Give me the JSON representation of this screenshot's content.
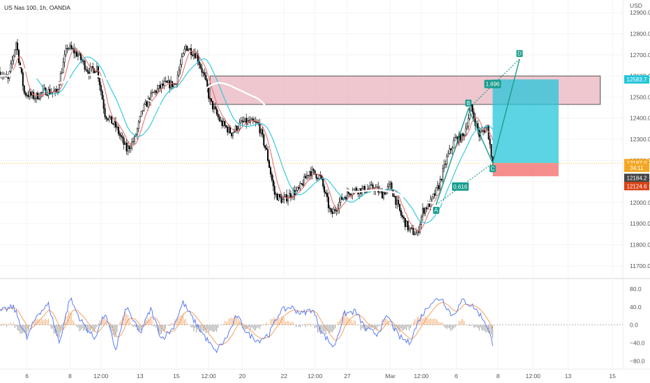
{
  "header": {
    "symbol": "US Nas 100, 1h, OANDA",
    "currency": "USD"
  },
  "chart_data": {
    "type": "candlestick",
    "price_axis": {
      "ylim": [
        11640,
        12960
      ],
      "ticks": [
        11700.0,
        11800.0,
        11900.0,
        12000.0,
        12100.0,
        12200.0,
        12300.0,
        12400.0,
        12500.0,
        12600.0,
        12700.0,
        12800.0,
        12900.0
      ]
    },
    "x_axis": {
      "ticks": [
        {
          "label": "6",
          "i": 20
        },
        {
          "label": "8",
          "i": 52
        },
        {
          "label": "12:00",
          "i": 75
        },
        {
          "label": "13",
          "i": 104
        },
        {
          "label": "15",
          "i": 131
        },
        {
          "label": "12:00",
          "i": 155
        },
        {
          "label": "20",
          "i": 180
        },
        {
          "label": "22",
          "i": 211
        },
        {
          "label": "12:00",
          "i": 234
        },
        {
          "label": "27",
          "i": 258
        },
        {
          "label": "Mar",
          "i": 290
        },
        {
          "label": "12:00",
          "i": 313
        },
        {
          "label": "6",
          "i": 339
        },
        {
          "label": "8",
          "i": 370
        },
        {
          "label": "12:00",
          "i": 396
        },
        {
          "label": "13",
          "i": 422
        },
        {
          "label": "15",
          "i": 455
        }
      ]
    },
    "price_path": [
      [
        0,
        12620
      ],
      [
        6,
        12580
      ],
      [
        12,
        12760
      ],
      [
        18,
        12520
      ],
      [
        26,
        12500
      ],
      [
        34,
        12530
      ],
      [
        42,
        12520
      ],
      [
        50,
        12740
      ],
      [
        58,
        12700
      ],
      [
        66,
        12620
      ],
      [
        72,
        12640
      ],
      [
        78,
        12420
      ],
      [
        86,
        12360
      ],
      [
        94,
        12250
      ],
      [
        100,
        12300
      ],
      [
        106,
        12440
      ],
      [
        114,
        12520
      ],
      [
        122,
        12560
      ],
      [
        130,
        12560
      ],
      [
        138,
        12740
      ],
      [
        146,
        12700
      ],
      [
        152,
        12590
      ],
      [
        156,
        12480
      ],
      [
        164,
        12380
      ],
      [
        172,
        12330
      ],
      [
        180,
        12380
      ],
      [
        186,
        12380
      ],
      [
        192,
        12370
      ],
      [
        198,
        12240
      ],
      [
        204,
        12040
      ],
      [
        210,
        12010
      ],
      [
        216,
        12040
      ],
      [
        222,
        12060
      ],
      [
        230,
        12150
      ],
      [
        238,
        12120
      ],
      [
        246,
        11940
      ],
      [
        254,
        12020
      ],
      [
        262,
        12060
      ],
      [
        270,
        12060
      ],
      [
        278,
        12070
      ],
      [
        284,
        12040
      ],
      [
        290,
        12080
      ],
      [
        298,
        11940
      ],
      [
        304,
        11870
      ],
      [
        310,
        11850
      ],
      [
        314,
        11960
      ],
      [
        320,
        12000
      ],
      [
        326,
        12080
      ],
      [
        332,
        12210
      ],
      [
        338,
        12300
      ],
      [
        344,
        12310
      ],
      [
        350,
        12450
      ],
      [
        356,
        12320
      ],
      [
        362,
        12360
      ],
      [
        366,
        12187
      ]
    ],
    "last_price": 12187.0,
    "moving_averages": [
      {
        "color": "#e57373",
        "period": 8
      },
      {
        "color": "#26c6da",
        "period": 20
      },
      {
        "color": "#ffffff",
        "period": 60
      }
    ],
    "zones": [
      {
        "kind": "supply",
        "from_i": 156,
        "to_i": 446,
        "top": 12600,
        "bottom": 12465,
        "color": "#e8b4bf"
      }
    ],
    "position": {
      "from_i": 366,
      "to_i": 415,
      "entry": 12187.0,
      "target": 12583.7,
      "stop": 12124.6,
      "profit_color": "#26c6da",
      "loss_color": "#ef5350"
    },
    "pattern": {
      "points": [
        {
          "label": "A",
          "i": 324,
          "price": 11990
        },
        {
          "label": "B",
          "i": 348,
          "price": 12445
        },
        {
          "label": "C",
          "i": 366,
          "price": 12187
        },
        {
          "label": "D",
          "i": 386,
          "price": 12680
        }
      ],
      "ratios": [
        {
          "label": "0.616",
          "i": 342,
          "price": 12076
        },
        {
          "label": "1.696",
          "i": 366,
          "price": 12562
        }
      ]
    },
    "price_badges": [
      {
        "label": "12583.7",
        "value": 12583.7,
        "color": "#26c6da"
      },
      {
        "label": "12187.0",
        "value": 12187.0,
        "color": "#f5a623"
      },
      {
        "label": "34:11",
        "value": 12165,
        "color": "#f5a623"
      },
      {
        "label": "12184.2",
        "value": 12117,
        "color": "#454545"
      },
      {
        "label": "12124.6",
        "value": 12078,
        "color": "#d84315"
      }
    ],
    "oscillator": {
      "ylim": [
        -95,
        100
      ],
      "ticks": [
        80.0,
        40.0,
        0.0,
        -40.0,
        -80.0
      ],
      "line1_color": "#5b7cf5",
      "line2_color": "#f4a261",
      "hist_color": "#888888",
      "path": [
        [
          0,
          30
        ],
        [
          10,
          40
        ],
        [
          20,
          -30
        ],
        [
          28,
          25
        ],
        [
          36,
          45
        ],
        [
          44,
          -40
        ],
        [
          52,
          60
        ],
        [
          60,
          10
        ],
        [
          70,
          -30
        ],
        [
          78,
          25
        ],
        [
          86,
          -55
        ],
        [
          94,
          40
        ],
        [
          104,
          -20
        ],
        [
          112,
          35
        ],
        [
          120,
          -30
        ],
        [
          128,
          -10
        ],
        [
          136,
          50
        ],
        [
          144,
          10
        ],
        [
          152,
          -25
        ],
        [
          160,
          -60
        ],
        [
          168,
          -30
        ],
        [
          176,
          20
        ],
        [
          184,
          -20
        ],
        [
          192,
          -35
        ],
        [
          200,
          -20
        ],
        [
          208,
          30
        ],
        [
          216,
          40
        ],
        [
          224,
          25
        ],
        [
          232,
          35
        ],
        [
          240,
          -20
        ],
        [
          248,
          -50
        ],
        [
          256,
          25
        ],
        [
          264,
          30
        ],
        [
          272,
          -10
        ],
        [
          280,
          -20
        ],
        [
          288,
          20
        ],
        [
          296,
          -25
        ],
        [
          304,
          -40
        ],
        [
          312,
          15
        ],
        [
          320,
          50
        ],
        [
          328,
          60
        ],
        [
          336,
          20
        ],
        [
          344,
          55
        ],
        [
          352,
          40
        ],
        [
          360,
          10
        ],
        [
          366,
          -40
        ]
      ]
    }
  }
}
